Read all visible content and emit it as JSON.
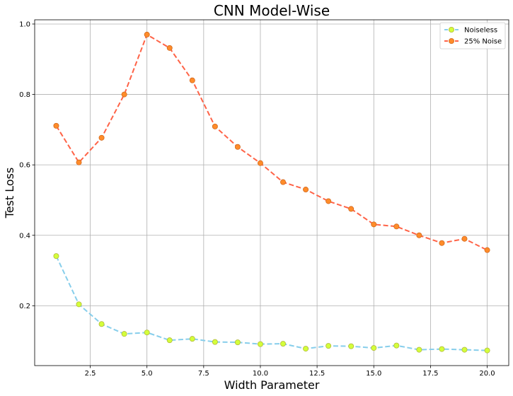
{
  "chart_data": {
    "type": "line",
    "title": "CNN Model-Wise",
    "xlabel": "Width Parameter",
    "ylabel": "Test Loss",
    "xlim": [
      0.05,
      20.95
    ],
    "ylim": [
      0.03,
      1.012
    ],
    "xticks": [
      2.5,
      5.0,
      7.5,
      10.0,
      12.5,
      15.0,
      17.5,
      20.0
    ],
    "xtick_labels": [
      "2.5",
      "5.0",
      "7.5",
      "10.0",
      "12.5",
      "15.0",
      "17.5",
      "20.0"
    ],
    "yticks": [
      0.2,
      0.4,
      0.6,
      0.8,
      1.0
    ],
    "ytick_labels": [
      "0.2",
      "0.4",
      "0.6",
      "0.8",
      "1.0"
    ],
    "grid": true,
    "legend_position": "top-right",
    "x": [
      1,
      2,
      3,
      4,
      5,
      6,
      7,
      8,
      9,
      10,
      11,
      12,
      13,
      14,
      15,
      16,
      17,
      18,
      19,
      20
    ],
    "series": [
      {
        "name": "Noiseless",
        "line_color": "#87ceeb",
        "marker_color": "#d4ff3a",
        "marker_edge": "#b0b83a",
        "values": [
          0.341,
          0.204,
          0.148,
          0.12,
          0.124,
          0.102,
          0.106,
          0.097,
          0.096,
          0.091,
          0.092,
          0.078,
          0.086,
          0.085,
          0.08,
          0.087,
          0.075,
          0.077,
          0.075,
          0.073
        ]
      },
      {
        "name": "25% Noise",
        "line_color": "#ff6347",
        "marker_color": "#ff8c2a",
        "marker_edge": "#d2691e",
        "values": [
          0.711,
          0.607,
          0.677,
          0.8,
          0.97,
          0.932,
          0.84,
          0.709,
          0.651,
          0.605,
          0.551,
          0.53,
          0.497,
          0.475,
          0.431,
          0.425,
          0.4,
          0.378,
          0.39,
          0.358
        ]
      }
    ]
  }
}
